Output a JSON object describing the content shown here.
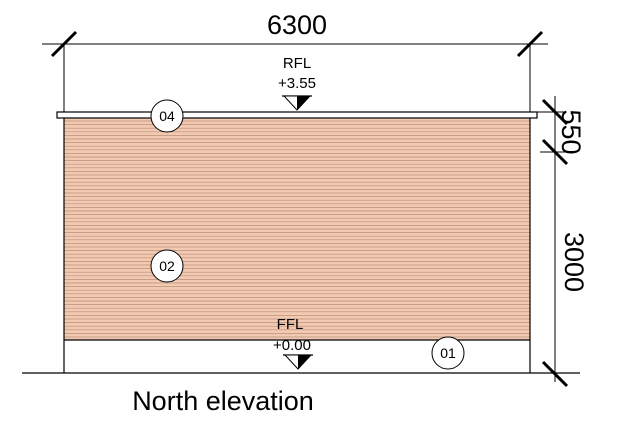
{
  "dimensions": {
    "top": "6300",
    "right_upper": "550",
    "right_lower": "3000"
  },
  "levels": {
    "roof": {
      "name": "RFL",
      "value": "+3.55"
    },
    "floor": {
      "name": "FFL",
      "value": "+0.00"
    }
  },
  "tags": [
    "04",
    "02",
    "01"
  ],
  "caption": "North elevation",
  "colors": {
    "cladding": "#f2c9b1",
    "cladding_lines": "#b9907c",
    "line": "#000000"
  }
}
